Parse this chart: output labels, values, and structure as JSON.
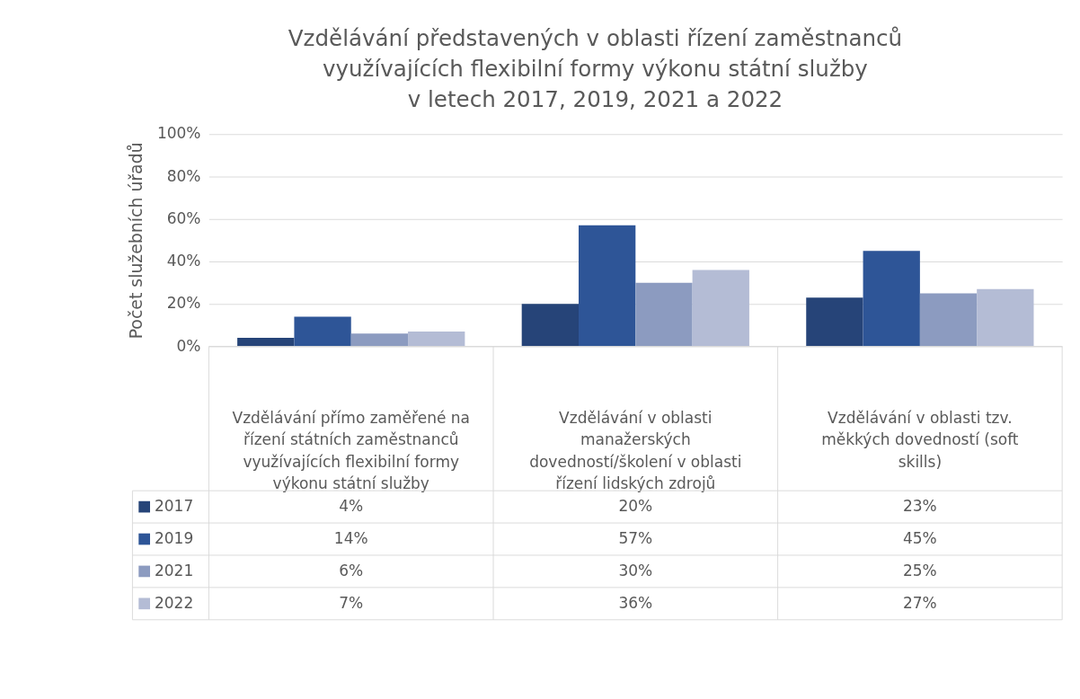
{
  "chart_data": {
    "type": "bar",
    "title": [
      "Vzdělávání představených v oblasti řízení zaměstnanců",
      "využívajících flexibilní formy výkonu státní služby",
      "v letech 2017, 2019, 2021 a 2022"
    ],
    "ylabel": "Počet služebních úřadů",
    "categories": [
      "Vzdělávání přímo zaměřené na řízení státních zaměstnanců využívajících flexibilní formy výkonu státní služby",
      "Vzdělávání v oblasti manažerských dovedností/školení v oblasti řízení lidských zdrojů",
      "Vzdělávání v oblasti tzv. měkkých dovedností (soft skills)"
    ],
    "series": [
      {
        "name": "2017",
        "color": "#264478",
        "values": [
          4,
          20,
          23
        ],
        "value_labels": [
          "4%",
          "20%",
          "23%"
        ]
      },
      {
        "name": "2019",
        "color": "#2e5597",
        "values": [
          14,
          57,
          45
        ],
        "value_labels": [
          "14%",
          "57%",
          "45%"
        ]
      },
      {
        "name": "2021",
        "color": "#8c9bc0",
        "values": [
          6,
          30,
          25
        ],
        "value_labels": [
          "6%",
          "30%",
          "25%"
        ]
      },
      {
        "name": "2022",
        "color": "#b4bcd5",
        "values": [
          7,
          36,
          27
        ],
        "value_labels": [
          "7%",
          "36%",
          "27%"
        ]
      }
    ],
    "ylim": [
      0,
      100
    ],
    "yticks": [
      {
        "value": 0,
        "label": "0%"
      },
      {
        "value": 20,
        "label": "20%"
      },
      {
        "value": 40,
        "label": "40%"
      },
      {
        "value": 60,
        "label": "60%"
      },
      {
        "value": 80,
        "label": "80%"
      },
      {
        "value": 100,
        "label": "100%"
      }
    ],
    "grid": "y",
    "legend": "bottom"
  }
}
